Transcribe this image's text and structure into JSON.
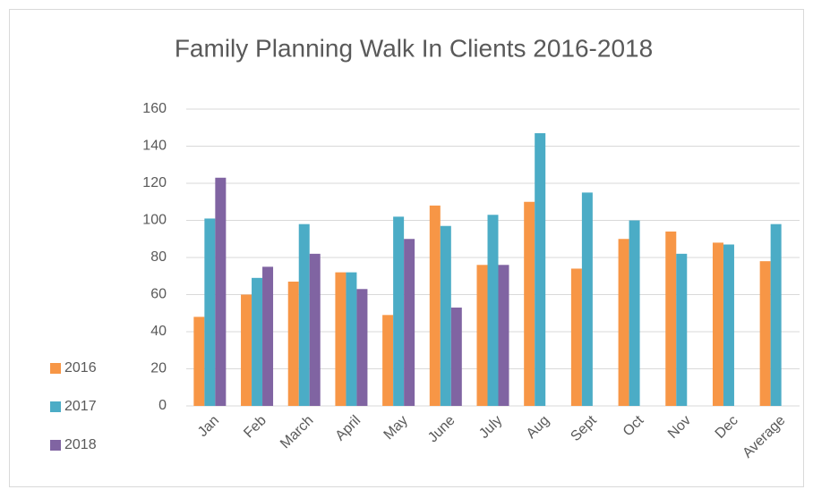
{
  "chart_data": {
    "type": "bar",
    "title": "Family Planning Walk In Clients 2016-2018",
    "categories": [
      "Jan",
      "Feb",
      "March",
      "April",
      "May",
      "June",
      "July",
      "Aug",
      "Sept",
      "Oct",
      "Nov",
      "Dec",
      "Average"
    ],
    "series": [
      {
        "name": "2016",
        "color": "#f79646",
        "values": [
          48,
          60,
          67,
          72,
          49,
          108,
          76,
          110,
          74,
          90,
          94,
          88,
          78
        ]
      },
      {
        "name": "2017",
        "color": "#4bacc6",
        "values": [
          101,
          69,
          98,
          72,
          102,
          97,
          103,
          147,
          115,
          100,
          82,
          87,
          98
        ]
      },
      {
        "name": "2018",
        "color": "#8064a2",
        "values": [
          123,
          75,
          82,
          63,
          90,
          53,
          76,
          null,
          null,
          null,
          null,
          null,
          null
        ]
      }
    ],
    "ylim": [
      0,
      160
    ],
    "yticks": [
      0,
      20,
      40,
      60,
      80,
      100,
      120,
      140,
      160
    ],
    "grid": true,
    "legend": "left"
  }
}
